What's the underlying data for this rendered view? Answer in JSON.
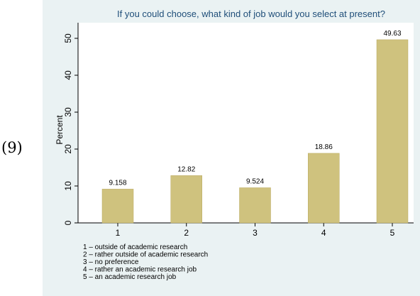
{
  "equation_number": "(9)",
  "chart_data": {
    "type": "bar",
    "title": "If you could choose, what kind of job would you select at present?",
    "xlabel": "",
    "ylabel": "Percent",
    "categories": [
      "1",
      "2",
      "3",
      "4",
      "5"
    ],
    "values": [
      9.158,
      12.82,
      9.524,
      18.86,
      49.63
    ],
    "value_labels": [
      "9.158",
      "12.82",
      "9.524",
      "18.86",
      "49.63"
    ],
    "ylim": [
      0,
      52
    ],
    "yticks": [
      0,
      10,
      20,
      30,
      40,
      50
    ],
    "ytick_labels": [
      "0",
      "10",
      "20",
      "30",
      "40",
      "50"
    ],
    "grid": false,
    "bar_color": "#cfc27e",
    "notes": [
      "1 – outside of academic research",
      "2 – rather outside of academic research",
      "3 – no preference",
      "4 – rather an academic research job",
      "5 – an academic research job"
    ]
  }
}
